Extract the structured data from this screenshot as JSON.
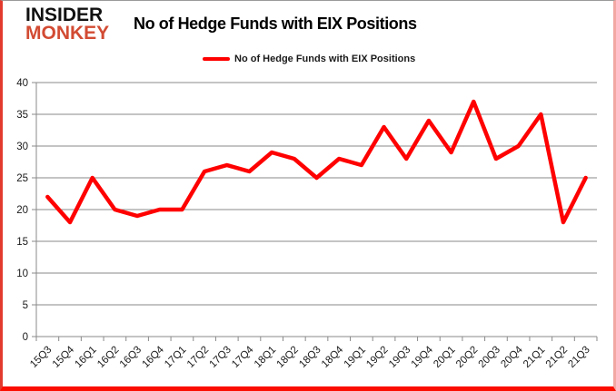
{
  "brand": {
    "line1": "INSIDER",
    "line2": "MONKEY",
    "color1": "#111111",
    "color2": "#d24b33"
  },
  "header": {
    "title": "No of Hedge Funds with EIX Positions"
  },
  "legend": {
    "label": "No of Hedge Funds with EIX Positions"
  },
  "colors": {
    "line": "#ff0000",
    "grid": "#8a8a8a",
    "axis": "#8a8a8a",
    "text": "#1a1a1a",
    "frame_red": "#fb0d00"
  },
  "chart_data": {
    "type": "line",
    "title": "No of Hedge Funds with EIX Positions",
    "categories": [
      "15Q3",
      "15Q4",
      "16Q1",
      "16Q2",
      "16Q3",
      "16Q4",
      "17Q1",
      "17Q2",
      "17Q3",
      "17Q4",
      "18Q1",
      "18Q2",
      "18Q3",
      "18Q4",
      "19Q1",
      "19Q2",
      "19Q3",
      "19Q4",
      "20Q1",
      "20Q2",
      "20Q3",
      "20Q4",
      "21Q1",
      "21Q2",
      "21Q3"
    ],
    "series": [
      {
        "name": "No of Hedge Funds with EIX Positions",
        "color": "#ff0000",
        "values": [
          22,
          18,
          25,
          20,
          19,
          20,
          20,
          26,
          27,
          26,
          29,
          28,
          25,
          28,
          27,
          33,
          28,
          34,
          29,
          37,
          28,
          30,
          35,
          18,
          25
        ]
      }
    ],
    "xlabel": "",
    "ylabel": "",
    "ylim": [
      0,
      40
    ],
    "yticks": [
      0,
      5,
      10,
      15,
      20,
      25,
      30,
      35,
      40
    ],
    "grid": true,
    "legend_position": "top"
  }
}
